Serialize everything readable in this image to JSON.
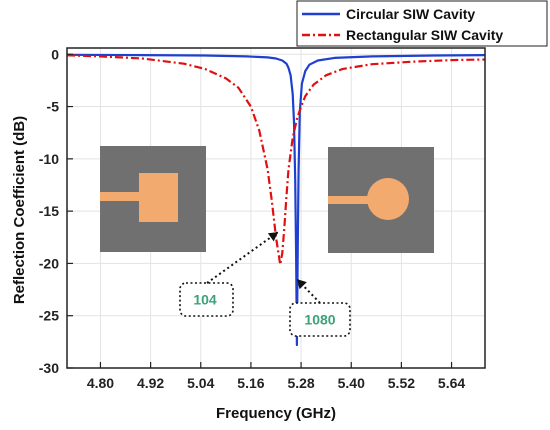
{
  "chart_data": {
    "type": "line",
    "xlabel": "Frequency  (GHz)",
    "ylabel": "Reflection Coefficient (dB)",
    "xlim": [
      4.72,
      5.72
    ],
    "ylim": [
      -30,
      0.6
    ],
    "x_ticks": [
      4.8,
      4.92,
      5.04,
      5.16,
      5.28,
      5.4,
      5.52,
      5.64
    ],
    "x_tick_labels": [
      "4.80",
      "4.92",
      "5.04",
      "5.16",
      "5.28",
      "5.40",
      "5.52",
      "5.64"
    ],
    "y_ticks": [
      0,
      -5,
      -10,
      -15,
      -20,
      -25,
      -30
    ],
    "y_tick_labels": [
      "0",
      "-5",
      "-10",
      "-15",
      "-20",
      "-25",
      "-30"
    ],
    "grid": true,
    "legend_position": "top-right",
    "series": [
      {
        "name": "Circular SIW Cavity",
        "color": "#1f3fd0",
        "style": "solid",
        "x": [
          4.72,
          4.9,
          5.05,
          5.15,
          5.2,
          5.22,
          5.235,
          5.245,
          5.25,
          5.255,
          5.26,
          5.263,
          5.266,
          5.268,
          5.27,
          5.272,
          5.274,
          5.277,
          5.282,
          5.29,
          5.3,
          5.32,
          5.36,
          5.45,
          5.6,
          5.72
        ],
        "values": [
          -0.05,
          -0.08,
          -0.12,
          -0.2,
          -0.3,
          -0.4,
          -0.6,
          -0.9,
          -1.3,
          -2.0,
          -3.8,
          -6.5,
          -12.0,
          -19.0,
          -27.8,
          -19.0,
          -11.0,
          -5.5,
          -2.8,
          -1.6,
          -1.0,
          -0.6,
          -0.35,
          -0.2,
          -0.12,
          -0.08
        ]
      },
      {
        "name": "Rectangular SIW Cavity",
        "color": "#e01010",
        "style": "dash-dot",
        "x": [
          4.72,
          4.8,
          4.9,
          5.0,
          5.05,
          5.1,
          5.13,
          5.16,
          5.18,
          5.2,
          5.21,
          5.22,
          5.23,
          5.235,
          5.24,
          5.245,
          5.25,
          5.26,
          5.27,
          5.28,
          5.29,
          5.31,
          5.34,
          5.38,
          5.45,
          5.55,
          5.65,
          5.72
        ],
        "values": [
          -0.1,
          -0.2,
          -0.4,
          -0.9,
          -1.4,
          -2.3,
          -3.2,
          -5.0,
          -7.3,
          -11.0,
          -14.0,
          -17.5,
          -20.1,
          -19.0,
          -16.5,
          -13.5,
          -11.0,
          -8.0,
          -6.2,
          -5.0,
          -4.0,
          -2.9,
          -2.0,
          -1.4,
          -0.95,
          -0.7,
          -0.55,
          -0.5
        ]
      }
    ],
    "annotations": [
      {
        "text": "104",
        "target_x": 5.225,
        "target_y": -17.0
      },
      {
        "text": "1080",
        "target_x": 5.27,
        "target_y": -21.5
      }
    ],
    "inset_colors": {
      "board": "#707070",
      "metal": "#f2aa6e"
    }
  }
}
